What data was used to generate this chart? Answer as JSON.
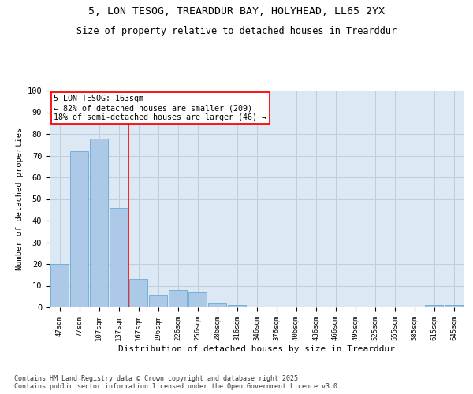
{
  "title1": "5, LON TESOG, TREARDDUR BAY, HOLYHEAD, LL65 2YX",
  "title2": "Size of property relative to detached houses in Trearddur",
  "xlabel": "Distribution of detached houses by size in Trearddur",
  "ylabel": "Number of detached properties",
  "categories": [
    "47sqm",
    "77sqm",
    "107sqm",
    "137sqm",
    "167sqm",
    "196sqm",
    "226sqm",
    "256sqm",
    "286sqm",
    "316sqm",
    "346sqm",
    "376sqm",
    "406sqm",
    "436sqm",
    "466sqm",
    "495sqm",
    "525sqm",
    "555sqm",
    "585sqm",
    "615sqm",
    "645sqm"
  ],
  "values": [
    20,
    72,
    78,
    46,
    13,
    6,
    8,
    7,
    2,
    1,
    0,
    0,
    0,
    0,
    0,
    0,
    0,
    0,
    0,
    1,
    1
  ],
  "bar_color": "#adc9e8",
  "bar_edge_color": "#6aaad4",
  "background_color": "#dde8f5",
  "grid_color": "#bccee0",
  "vline_color": "red",
  "annotation_text": "5 LON TESOG: 163sqm\n← 82% of detached houses are smaller (209)\n18% of semi-detached houses are larger (46) →",
  "annotation_box_color": "white",
  "annotation_box_edge": "red",
  "footer": "Contains HM Land Registry data © Crown copyright and database right 2025.\nContains public sector information licensed under the Open Government Licence v3.0.",
  "ylim": [
    0,
    100
  ],
  "yticks": [
    0,
    10,
    20,
    30,
    40,
    50,
    60,
    70,
    80,
    90,
    100
  ]
}
